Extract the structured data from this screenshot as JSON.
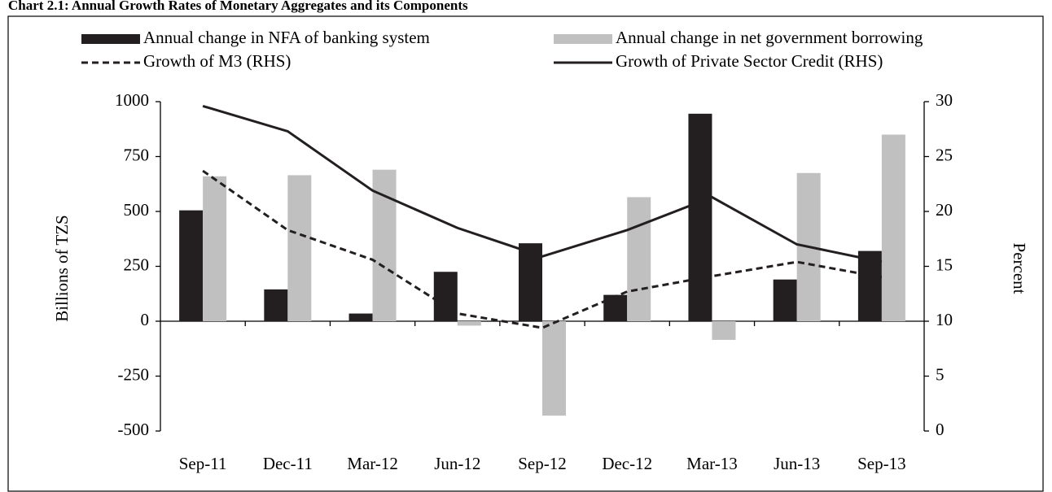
{
  "chart_data": {
    "type": "bar_line",
    "title": "Chart 2.1: Annual Growth Rates of Monetary Aggregates and its Components",
    "categories": [
      "Sep-11",
      "Dec-11",
      "Mar-12",
      "Jun-12",
      "Sep-12",
      "Dec-12",
      "Mar-13",
      "Jun-13",
      "Sep-13"
    ],
    "series": [
      {
        "name": "Annual change in NFA of banking system",
        "kind": "bar",
        "color": "#231f20",
        "values": [
          505,
          145,
          35,
          225,
          355,
          120,
          945,
          190,
          320
        ]
      },
      {
        "name": "Annual change in net government borrowing",
        "kind": "bar",
        "color": "#c0c0c0",
        "values": [
          660,
          665,
          690,
          -20,
          -430,
          565,
          -85,
          675,
          850
        ]
      },
      {
        "name": "Growth of M3 (RHS)",
        "kind": "line",
        "dash": true,
        "axis": "y2",
        "color": "#231f20",
        "values": [
          23.7,
          18.3,
          15.6,
          10.7,
          9.4,
          12.7,
          14.1,
          15.4,
          14.0
        ]
      },
      {
        "name": "Growth of Private Sector Credit (RHS)",
        "kind": "line",
        "dash": false,
        "axis": "y2",
        "color": "#231f20",
        "values": [
          29.6,
          27.3,
          21.9,
          18.5,
          15.9,
          18.3,
          21.3,
          17.0,
          15.4
        ]
      }
    ],
    "ylabel": "Billions of TZS",
    "y2label": "Percent",
    "ylim": [
      -500,
      1000
    ],
    "yticks": [
      -500,
      -250,
      0,
      250,
      500,
      750,
      1000
    ],
    "y2lim": [
      0,
      30
    ],
    "y2ticks": [
      0,
      5,
      10,
      15,
      20,
      25,
      30
    ]
  }
}
